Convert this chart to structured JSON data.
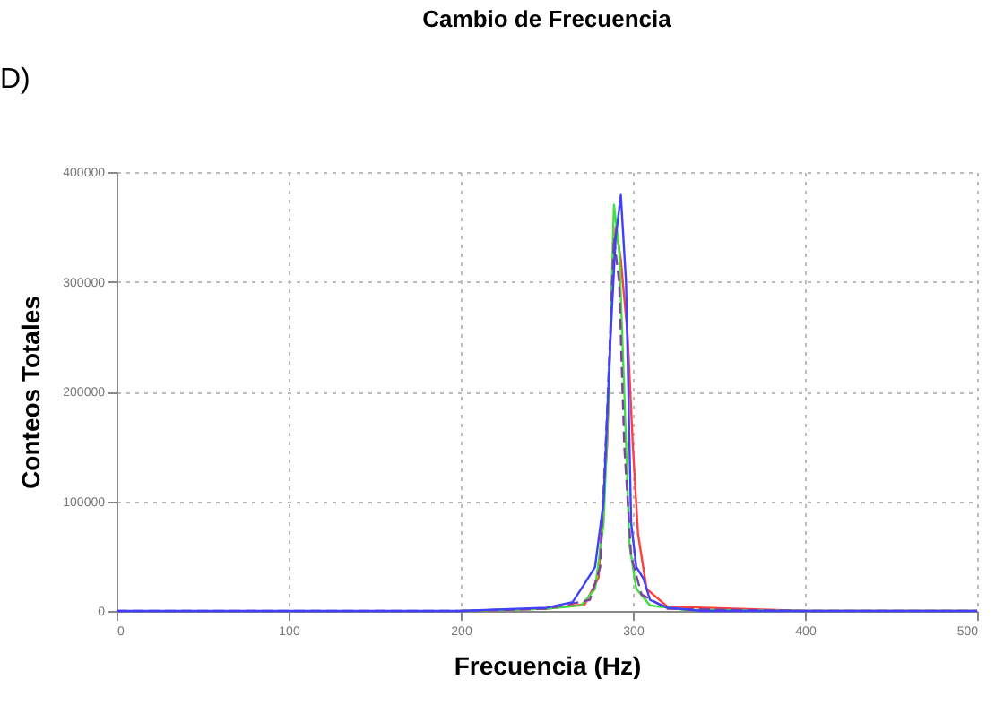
{
  "chart_data": {
    "type": "line",
    "title": "Cambio de Frecuencia",
    "xlabel": "Frecuencia (Hz)",
    "ylabel": "Conteos Totales",
    "annotations": [
      "D)"
    ],
    "xlim": [
      0,
      500
    ],
    "xticks": [
      0,
      100,
      200,
      300,
      400,
      500
    ],
    "ylim": [
      0,
      400000
    ],
    "yticks": [
      0,
      100000,
      200000,
      300000,
      400000
    ],
    "grid": true,
    "series": [
      {
        "color": "#ff4040",
        "line_style": "solid",
        "x": [
          200,
          250,
          272,
          280,
          285,
          288,
          290,
          293,
          297,
          300,
          303,
          308,
          320,
          400,
          500
        ],
        "values": [
          0,
          2000,
          6000,
          30000,
          150000,
          300000,
          350000,
          320000,
          250000,
          150000,
          70000,
          20000,
          4000,
          0,
          0
        ]
      },
      {
        "color": "#40e040",
        "line_style": "solid",
        "x": [
          200,
          250,
          270,
          278,
          283,
          286,
          289,
          292,
          295,
          298,
          302,
          310,
          330,
          400,
          500
        ],
        "values": [
          0,
          2000,
          5000,
          20000,
          80000,
          200000,
          370000,
          330000,
          200000,
          60000,
          20000,
          5000,
          1000,
          0,
          0
        ]
      },
      {
        "color": "#8040a0",
        "line_style": "dashed",
        "x": [
          0,
          50,
          100,
          150,
          200,
          250,
          275,
          281,
          285,
          289,
          292,
          295,
          299,
          305,
          320,
          400,
          500
        ],
        "values": [
          0,
          0,
          0,
          0,
          0,
          2000,
          10000,
          40000,
          180000,
          340000,
          300000,
          150000,
          50000,
          15000,
          2000,
          0,
          0
        ]
      },
      {
        "color": "#4040ff",
        "line_style": "solid",
        "x": [
          0,
          50,
          100,
          150,
          200,
          250,
          265,
          272,
          278,
          283,
          287,
          290,
          293,
          296,
          299,
          302,
          306,
          310,
          320,
          340,
          400,
          500
        ],
        "values": [
          0,
          0,
          0,
          0,
          0,
          3000,
          8000,
          25000,
          40000,
          100000,
          250000,
          340000,
          379000,
          300000,
          80000,
          40000,
          30000,
          10000,
          3000,
          0,
          0,
          0
        ]
      }
    ]
  }
}
